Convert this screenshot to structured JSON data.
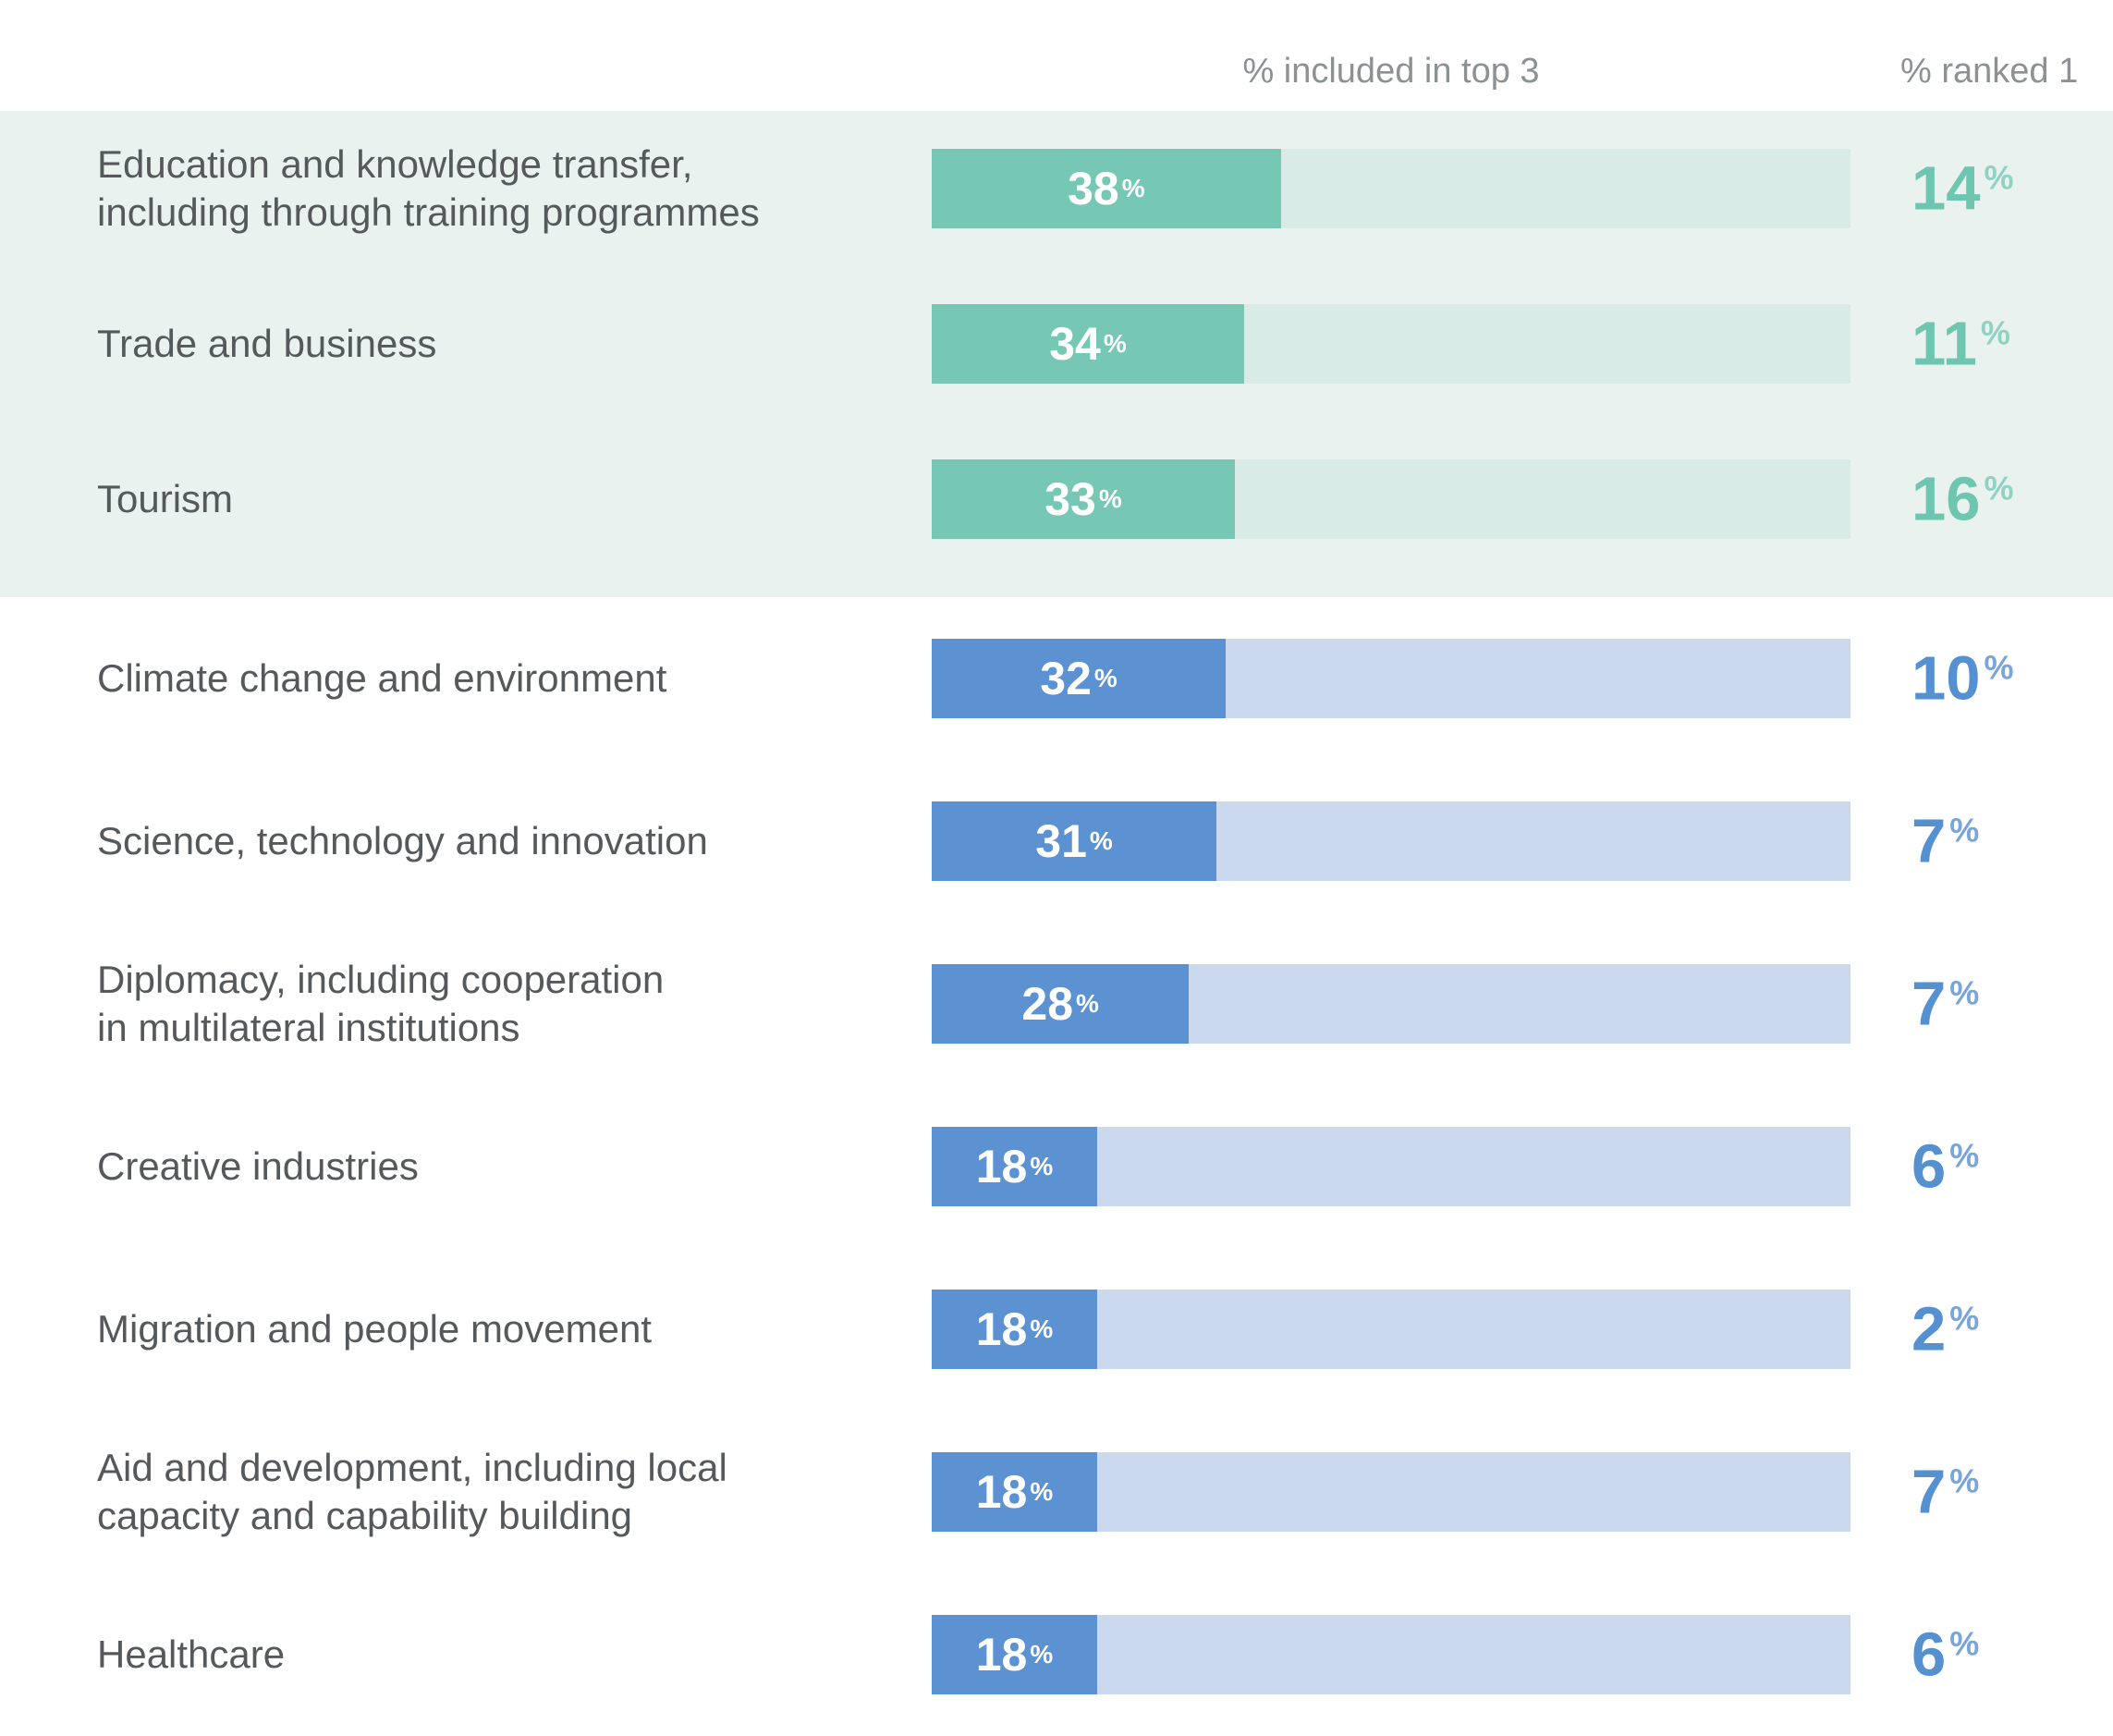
{
  "header": {
    "top3_label": "% included in top 3",
    "rank1_label": "% ranked 1"
  },
  "colors": {
    "band_background": "#e9f2ef",
    "label_text": "#55595c",
    "header_text": "#8c9194",
    "teal": {
      "bar": "#76c7b4",
      "track": "#d8ebe6",
      "rank_text": "#6ec5b0",
      "rank_pct": "#8fd2c3"
    },
    "blue": {
      "bar": "#5c92d1",
      "track": "#cbd9ef",
      "rank_text": "#5590d0",
      "rank_pct": "#79a5da"
    },
    "bar_value_text": "#ffffff"
  },
  "chart_data": {
    "type": "bar",
    "orientation": "horizontal",
    "title": "",
    "categories": [
      "Education and knowledge transfer, including through training programmes",
      "Trade and business",
      "Tourism",
      "Climate change and environment",
      "Science, technology and innovation",
      "Diplomacy, including cooperation in multilateral institutions",
      "Creative industries",
      "Migration and people movement",
      "Aid and development, including local capacity and capability building",
      "Healthcare"
    ],
    "series": [
      {
        "name": "% included in top 3",
        "values": [
          38,
          34,
          33,
          32,
          31,
          28,
          18,
          18,
          18,
          18
        ]
      },
      {
        "name": "% ranked 1",
        "values": [
          14,
          11,
          16,
          10,
          7,
          7,
          6,
          2,
          7,
          6
        ]
      }
    ],
    "xlim": [
      0,
      100
    ],
    "grid": false,
    "legend_position": "column headers above chart",
    "layout_hint": "top 3 rows highlighted teal on a mint band; remaining 7 rows blue on white"
  },
  "rows": [
    {
      "label_lines": [
        "Education and knowledge transfer,",
        "including through training programmes"
      ],
      "group": "teal"
    },
    {
      "label_lines": [
        "Trade and business"
      ],
      "group": "teal"
    },
    {
      "label_lines": [
        "Tourism"
      ],
      "group": "teal"
    },
    {
      "label_lines": [
        "Climate change and environment"
      ],
      "group": "blue"
    },
    {
      "label_lines": [
        "Science, technology and innovation"
      ],
      "group": "blue"
    },
    {
      "label_lines": [
        "Diplomacy, including cooperation",
        "in multilateral institutions"
      ],
      "group": "blue"
    },
    {
      "label_lines": [
        "Creative industries"
      ],
      "group": "blue"
    },
    {
      "label_lines": [
        "Migration and people movement"
      ],
      "group": "blue"
    },
    {
      "label_lines": [
        "Aid and development, including local",
        "capacity and capability building"
      ],
      "group": "blue"
    },
    {
      "label_lines": [
        "Healthcare"
      ],
      "group": "blue"
    }
  ]
}
